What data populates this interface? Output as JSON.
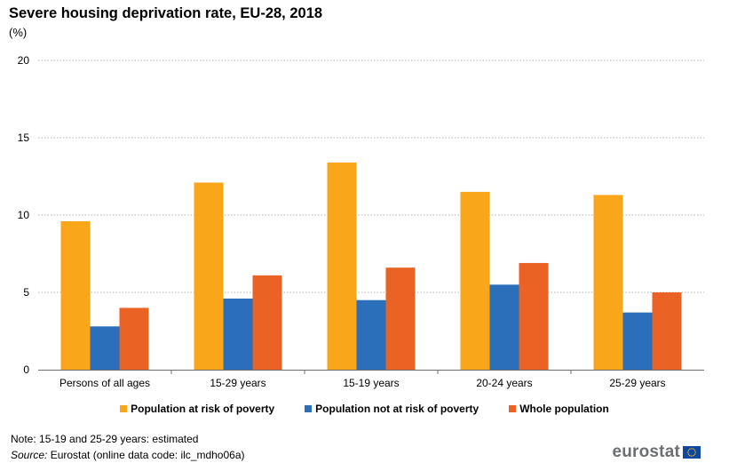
{
  "title": "Severe housing deprivation rate, EU-28, 2018",
  "subtitle": "(%)",
  "note": "Note: 15-19 and 25-29 years: estimated",
  "source_label": "Source:",
  "source_text": " Eurostat (online data code: ilc_mdho06a)",
  "logo_text": "eurostat",
  "colors": {
    "at_risk": "#f9a61a",
    "not_at_risk": "#2b6fbb",
    "whole": "#eb6225",
    "grid": "#b3b3b3",
    "axis": "#6d6e71",
    "logo_blue": "#0e47a1",
    "logo_star": "#ffcc00"
  },
  "chart_data": {
    "type": "bar",
    "categories": [
      "Persons of all ages",
      "15-29 years",
      "15-19 years",
      "20-24 years",
      "25-29 years"
    ],
    "series": [
      {
        "name": "Population at risk of poverty",
        "values": [
          9.6,
          12.1,
          13.4,
          11.5,
          11.3
        ]
      },
      {
        "name": "Population not at risk of poverty",
        "values": [
          2.8,
          4.6,
          4.5,
          5.5,
          3.7
        ]
      },
      {
        "name": "Whole population",
        "values": [
          4.0,
          6.1,
          6.6,
          6.9,
          5.0
        ]
      }
    ],
    "yticks": [
      0,
      5,
      10,
      15,
      20
    ],
    "ylim": [
      0,
      20
    ],
    "grid": true,
    "legend_position": "bottom"
  }
}
